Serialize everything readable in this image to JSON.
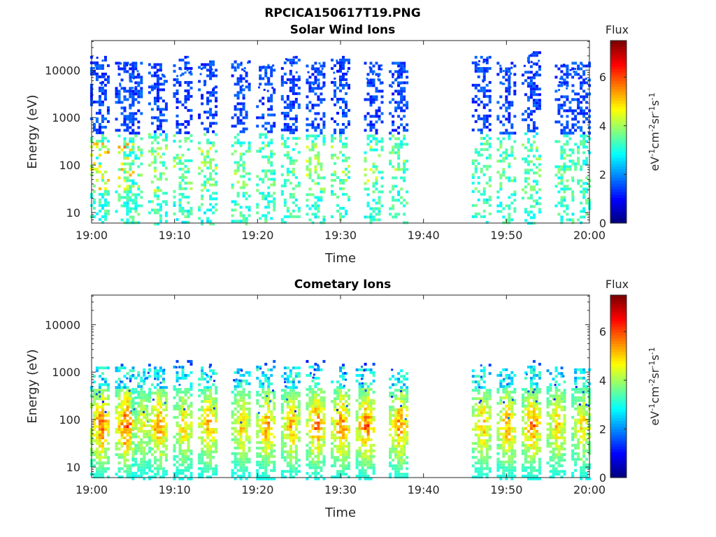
{
  "figure": {
    "title": "RPCICA150617T19.PNG"
  },
  "colorbar": {
    "label": "Flux",
    "units_base": "eV",
    "ticks": [
      0,
      2,
      4,
      6
    ],
    "range": [
      0,
      7.5
    ],
    "colormap": "jet"
  },
  "x_axis": {
    "label": "Time",
    "ticks": [
      "19:00",
      "19:10",
      "19:20",
      "19:30",
      "19:40",
      "19:50",
      "20:00"
    ],
    "range_minutes": [
      0,
      60
    ]
  },
  "y_axis": {
    "label": "Energy (eV)",
    "scale": "log",
    "ticks": [
      "10",
      "100",
      "1000",
      "10000"
    ],
    "range": [
      6,
      42000
    ]
  },
  "chart_data": [
    {
      "type": "heatmap",
      "title": "Solar Wind Ions",
      "xlabel": "Time",
      "ylabel": "Energy (eV)",
      "colorbar_label": "Flux",
      "xlim": [
        "19:00",
        "20:00"
      ],
      "ylim": [
        6,
        42000
      ],
      "yscale": "log",
      "clim": [
        0,
        7.5
      ],
      "data_gap": [
        "19:38",
        "19:45"
      ],
      "bursts": [
        {
          "t": "19:01",
          "peak_flux": 5.5,
          "hi_energy": 20000
        },
        {
          "t": "19:04",
          "peak_flux": 5.8,
          "hi_energy": 15000
        },
        {
          "t": "19:05",
          "peak_flux": 4.0,
          "hi_energy": 15000
        },
        {
          "t": "19:08",
          "peak_flux": 4.5,
          "hi_energy": 14000
        },
        {
          "t": "19:11",
          "peak_flux": 4.2,
          "hi_energy": 20000
        },
        {
          "t": "19:14",
          "peak_flux": 4.5,
          "hi_energy": 16000
        },
        {
          "t": "19:18",
          "peak_flux": 4.2,
          "hi_energy": 16000
        },
        {
          "t": "19:21",
          "peak_flux": 4.0,
          "hi_energy": 14000
        },
        {
          "t": "19:24",
          "peak_flux": 4.0,
          "hi_energy": 20000
        },
        {
          "t": "19:27",
          "peak_flux": 4.5,
          "hi_energy": 15000
        },
        {
          "t": "19:30",
          "peak_flux": 4.2,
          "hi_energy": 20000
        },
        {
          "t": "19:34",
          "peak_flux": 4.5,
          "hi_energy": 15000
        },
        {
          "t": "19:37",
          "peak_flux": 4.2,
          "hi_energy": 15000
        },
        {
          "t": "19:47",
          "peak_flux": 3.8,
          "hi_energy": 20000
        },
        {
          "t": "19:50",
          "peak_flux": 3.8,
          "hi_energy": 15000
        },
        {
          "t": "19:53",
          "peak_flux": 4.0,
          "hi_energy": 25000
        },
        {
          "t": "19:57",
          "peak_flux": 3.8,
          "hi_energy": 15000
        },
        {
          "t": "19:59",
          "peak_flux": 3.6,
          "hi_energy": 15000
        }
      ]
    },
    {
      "type": "heatmap",
      "title": "Cometary Ions",
      "xlabel": "Time",
      "ylabel": "Energy (eV)",
      "colorbar_label": "Flux",
      "xlim": [
        "19:00",
        "20:00"
      ],
      "ylim": [
        6,
        42000
      ],
      "yscale": "log",
      "clim": [
        0,
        7.5
      ],
      "data_gap": [
        "19:38",
        "19:45"
      ],
      "bursts": [
        {
          "t": "19:01",
          "peak_flux": 6.5,
          "hi_energy": 1500
        },
        {
          "t": "19:04",
          "peak_flux": 6.8,
          "hi_energy": 1500
        },
        {
          "t": "19:06",
          "peak_flux": 5.0,
          "hi_energy": 1200
        },
        {
          "t": "19:08",
          "peak_flux": 6.2,
          "hi_energy": 1500
        },
        {
          "t": "19:11",
          "peak_flux": 5.5,
          "hi_energy": 1800
        },
        {
          "t": "19:14",
          "peak_flux": 6.0,
          "hi_energy": 1500
        },
        {
          "t": "19:18",
          "peak_flux": 5.5,
          "hi_energy": 1200
        },
        {
          "t": "19:21",
          "peak_flux": 6.0,
          "hi_energy": 1800
        },
        {
          "t": "19:24",
          "peak_flux": 5.8,
          "hi_energy": 1500
        },
        {
          "t": "19:27",
          "peak_flux": 6.3,
          "hi_energy": 1800
        },
        {
          "t": "19:30",
          "peak_flux": 6.3,
          "hi_energy": 1500
        },
        {
          "t": "19:33",
          "peak_flux": 6.5,
          "hi_energy": 1800
        },
        {
          "t": "19:37",
          "peak_flux": 6.2,
          "hi_energy": 1500
        },
        {
          "t": "19:47",
          "peak_flux": 5.8,
          "hi_energy": 1500
        },
        {
          "t": "19:50",
          "peak_flux": 6.0,
          "hi_energy": 1200
        },
        {
          "t": "19:53",
          "peak_flux": 6.2,
          "hi_energy": 1800
        },
        {
          "t": "19:56",
          "peak_flux": 5.6,
          "hi_energy": 1500
        },
        {
          "t": "19:59",
          "peak_flux": 5.4,
          "hi_energy": 1200
        }
      ]
    }
  ]
}
